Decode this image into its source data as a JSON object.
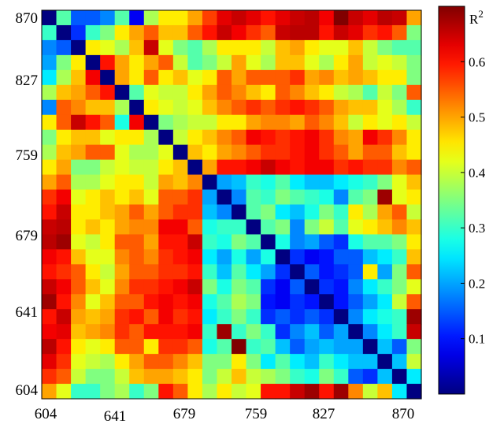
{
  "chart_data": {
    "type": "heatmap",
    "x_tick_labels": [
      "604",
      "641",
      "679",
      "759",
      "827",
      "870"
    ],
    "y_tick_labels": [
      "870",
      "827",
      "759",
      "679",
      "641",
      "604"
    ],
    "colorbar": {
      "label": "R",
      "label_superscript": "2",
      "ticks": [
        0.1,
        0.2,
        0.3,
        0.4,
        0.5,
        0.6
      ],
      "range": [
        0.0,
        0.7
      ]
    },
    "matrix": [
      [
        0.0,
        0.32,
        0.15,
        0.15,
        0.18,
        0.32,
        0.08,
        0.38,
        0.45,
        0.45,
        0.5,
        0.57,
        0.63,
        0.65,
        0.63,
        0.6,
        0.63,
        0.65,
        0.66,
        0.62,
        0.7,
        0.65,
        0.63,
        0.66,
        0.65,
        0.5
      ],
      [
        0.3,
        0.0,
        0.12,
        0.3,
        0.35,
        0.45,
        0.5,
        0.55,
        0.48,
        0.48,
        0.55,
        0.6,
        0.65,
        0.62,
        0.58,
        0.55,
        0.65,
        0.66,
        0.66,
        0.6,
        0.65,
        0.63,
        0.58,
        0.6,
        0.55,
        0.35
      ],
      [
        0.18,
        0.15,
        0.0,
        0.45,
        0.42,
        0.38,
        0.48,
        0.65,
        0.42,
        0.35,
        0.32,
        0.38,
        0.45,
        0.45,
        0.45,
        0.4,
        0.48,
        0.5,
        0.45,
        0.42,
        0.42,
        0.48,
        0.4,
        0.35,
        0.32,
        0.32
      ],
      [
        0.2,
        0.35,
        0.45,
        0.0,
        0.6,
        0.5,
        0.45,
        0.5,
        0.55,
        0.4,
        0.32,
        0.35,
        0.4,
        0.5,
        0.42,
        0.38,
        0.48,
        0.48,
        0.42,
        0.38,
        0.45,
        0.5,
        0.4,
        0.42,
        0.4,
        0.35
      ],
      [
        0.25,
        0.38,
        0.48,
        0.62,
        0.0,
        0.5,
        0.45,
        0.55,
        0.45,
        0.48,
        0.42,
        0.45,
        0.55,
        0.5,
        0.55,
        0.55,
        0.55,
        0.58,
        0.5,
        0.52,
        0.48,
        0.5,
        0.48,
        0.45,
        0.45,
        0.35
      ],
      [
        0.38,
        0.48,
        0.5,
        0.55,
        0.6,
        0.0,
        0.32,
        0.42,
        0.4,
        0.4,
        0.45,
        0.5,
        0.55,
        0.52,
        0.48,
        0.45,
        0.55,
        0.52,
        0.48,
        0.45,
        0.4,
        0.38,
        0.32,
        0.4,
        0.35,
        0.55
      ],
      [
        0.18,
        0.55,
        0.52,
        0.48,
        0.48,
        0.38,
        0.0,
        0.45,
        0.42,
        0.4,
        0.42,
        0.48,
        0.52,
        0.55,
        0.58,
        0.55,
        0.58,
        0.6,
        0.58,
        0.55,
        0.5,
        0.48,
        0.48,
        0.42,
        0.38,
        0.3
      ],
      [
        0.45,
        0.55,
        0.65,
        0.6,
        0.55,
        0.28,
        0.62,
        0.0,
        0.35,
        0.38,
        0.4,
        0.4,
        0.45,
        0.45,
        0.5,
        0.52,
        0.52,
        0.5,
        0.55,
        0.52,
        0.48,
        0.4,
        0.45,
        0.42,
        0.45,
        0.4
      ],
      [
        0.35,
        0.45,
        0.48,
        0.48,
        0.42,
        0.45,
        0.45,
        0.38,
        0.0,
        0.4,
        0.45,
        0.48,
        0.52,
        0.55,
        0.62,
        0.6,
        0.58,
        0.6,
        0.62,
        0.58,
        0.52,
        0.5,
        0.62,
        0.58,
        0.52,
        0.45
      ],
      [
        0.38,
        0.48,
        0.5,
        0.55,
        0.55,
        0.42,
        0.38,
        0.38,
        0.42,
        0.0,
        0.48,
        0.45,
        0.5,
        0.52,
        0.55,
        0.58,
        0.58,
        0.6,
        0.62,
        0.58,
        0.55,
        0.5,
        0.55,
        0.55,
        0.48,
        0.45
      ],
      [
        0.45,
        0.5,
        0.35,
        0.35,
        0.4,
        0.42,
        0.4,
        0.4,
        0.45,
        0.48,
        0.0,
        0.5,
        0.6,
        0.6,
        0.62,
        0.65,
        0.62,
        0.6,
        0.62,
        0.62,
        0.58,
        0.6,
        0.58,
        0.58,
        0.52,
        0.55
      ],
      [
        0.5,
        0.55,
        0.38,
        0.38,
        0.42,
        0.45,
        0.45,
        0.4,
        0.5,
        0.48,
        0.52,
        0.0,
        0.2,
        0.22,
        0.3,
        0.28,
        0.32,
        0.25,
        0.22,
        0.22,
        0.25,
        0.28,
        0.3,
        0.35,
        0.42,
        0.48
      ],
      [
        0.58,
        0.62,
        0.42,
        0.45,
        0.48,
        0.45,
        0.48,
        0.42,
        0.55,
        0.55,
        0.58,
        0.2,
        0.0,
        0.18,
        0.32,
        0.3,
        0.35,
        0.32,
        0.3,
        0.28,
        0.18,
        0.32,
        0.35,
        0.68,
        0.42,
        0.45
      ],
      [
        0.6,
        0.65,
        0.45,
        0.45,
        0.48,
        0.5,
        0.55,
        0.5,
        0.55,
        0.58,
        0.58,
        0.22,
        0.18,
        0.0,
        0.32,
        0.35,
        0.25,
        0.22,
        0.28,
        0.35,
        0.3,
        0.45,
        0.38,
        0.5,
        0.55,
        0.4
      ],
      [
        0.65,
        0.66,
        0.45,
        0.48,
        0.45,
        0.5,
        0.52,
        0.52,
        0.62,
        0.62,
        0.55,
        0.28,
        0.3,
        0.3,
        0.0,
        0.32,
        0.35,
        0.18,
        0.35,
        0.4,
        0.32,
        0.42,
        0.45,
        0.48,
        0.52,
        0.48
      ],
      [
        0.66,
        0.68,
        0.42,
        0.4,
        0.45,
        0.55,
        0.55,
        0.5,
        0.6,
        0.6,
        0.65,
        0.3,
        0.28,
        0.35,
        0.32,
        0.0,
        0.28,
        0.18,
        0.2,
        0.15,
        0.12,
        0.28,
        0.32,
        0.32,
        0.35,
        0.45
      ],
      [
        0.62,
        0.6,
        0.48,
        0.42,
        0.42,
        0.52,
        0.55,
        0.52,
        0.58,
        0.6,
        0.62,
        0.25,
        0.2,
        0.28,
        0.2,
        0.28,
        0.0,
        0.12,
        0.08,
        0.1,
        0.15,
        0.15,
        0.22,
        0.25,
        0.3,
        0.48
      ],
      [
        0.6,
        0.58,
        0.55,
        0.45,
        0.4,
        0.5,
        0.55,
        0.55,
        0.58,
        0.58,
        0.6,
        0.3,
        0.22,
        0.32,
        0.25,
        0.2,
        0.12,
        0.0,
        0.15,
        0.1,
        0.12,
        0.15,
        0.45,
        0.2,
        0.35,
        0.55
      ],
      [
        0.65,
        0.62,
        0.55,
        0.48,
        0.42,
        0.52,
        0.58,
        0.58,
        0.6,
        0.62,
        0.65,
        0.35,
        0.28,
        0.35,
        0.32,
        0.12,
        0.08,
        0.15,
        0.0,
        0.12,
        0.1,
        0.18,
        0.25,
        0.3,
        0.35,
        0.42
      ],
      [
        0.68,
        0.6,
        0.52,
        0.42,
        0.48,
        0.55,
        0.55,
        0.6,
        0.62,
        0.6,
        0.62,
        0.28,
        0.32,
        0.38,
        0.35,
        0.1,
        0.08,
        0.12,
        0.1,
        0.0,
        0.1,
        0.15,
        0.2,
        0.25,
        0.4,
        0.55
      ],
      [
        0.6,
        0.65,
        0.5,
        0.48,
        0.5,
        0.58,
        0.6,
        0.55,
        0.62,
        0.58,
        0.6,
        0.25,
        0.3,
        0.35,
        0.3,
        0.12,
        0.15,
        0.12,
        0.15,
        0.12,
        0.0,
        0.18,
        0.25,
        0.28,
        0.3,
        0.68
      ],
      [
        0.62,
        0.63,
        0.48,
        0.5,
        0.52,
        0.58,
        0.55,
        0.6,
        0.6,
        0.6,
        0.62,
        0.3,
        0.68,
        0.3,
        0.35,
        0.3,
        0.12,
        0.18,
        0.22,
        0.15,
        0.2,
        0.0,
        0.18,
        0.25,
        0.3,
        0.65
      ],
      [
        0.66,
        0.6,
        0.45,
        0.42,
        0.45,
        0.55,
        0.55,
        0.45,
        0.58,
        0.58,
        0.55,
        0.28,
        0.32,
        0.7,
        0.3,
        0.32,
        0.22,
        0.15,
        0.2,
        0.22,
        0.2,
        0.2,
        0.0,
        0.22,
        0.15,
        0.35
      ],
      [
        0.63,
        0.58,
        0.42,
        0.4,
        0.38,
        0.45,
        0.5,
        0.55,
        0.55,
        0.52,
        0.48,
        0.35,
        0.35,
        0.45,
        0.35,
        0.25,
        0.32,
        0.25,
        0.22,
        0.3,
        0.25,
        0.22,
        0.22,
        0.0,
        0.22,
        0.4
      ],
      [
        0.58,
        0.55,
        0.4,
        0.35,
        0.35,
        0.4,
        0.48,
        0.5,
        0.5,
        0.48,
        0.45,
        0.35,
        0.4,
        0.48,
        0.4,
        0.38,
        0.35,
        0.3,
        0.28,
        0.35,
        0.3,
        0.15,
        0.12,
        0.22,
        0.0,
        0.25
      ],
      [
        0.5,
        0.42,
        0.3,
        0.3,
        0.35,
        0.38,
        0.3,
        0.35,
        0.6,
        0.55,
        0.45,
        0.38,
        0.45,
        0.4,
        0.42,
        0.6,
        0.6,
        0.65,
        0.68,
        0.6,
        0.68,
        0.52,
        0.4,
        0.48,
        0.25,
        0.0
      ]
    ]
  }
}
